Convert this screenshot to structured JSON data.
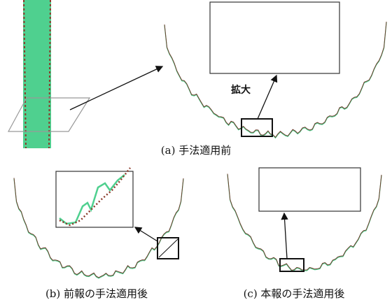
{
  "figure": {
    "zoom_label": "拡大",
    "captions": [
      "(a) 手法適用前",
      "(b) 前報の手法適用後",
      "(c) 本報の手法適用後"
    ]
  }
}
